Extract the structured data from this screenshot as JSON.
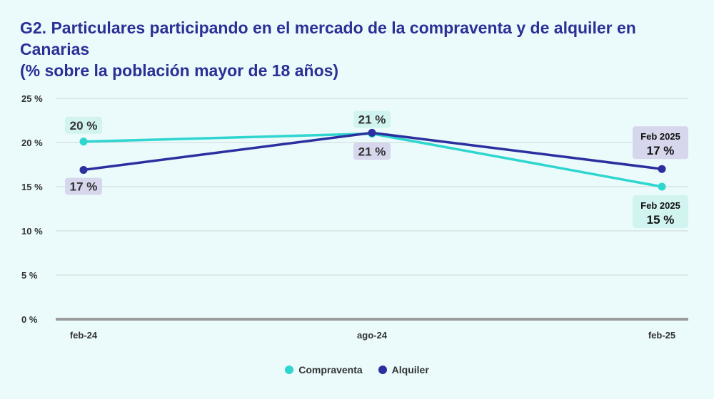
{
  "title_line1": "G2. Particulares participando en el mercado de la compraventa y de alquiler en Canarias",
  "title_line2": "(% sobre la población mayor de 18 años)",
  "chart_data": {
    "type": "line",
    "categories": [
      "feb-24",
      "ago-24",
      "feb-25"
    ],
    "y_ticks": [
      "0 %",
      "5 %",
      "10 %",
      "15 %",
      "20 %",
      "25 %"
    ],
    "ylim": [
      0,
      25
    ],
    "grid": true,
    "legend_position": "bottom",
    "series": [
      {
        "name": "Compraventa",
        "color": "#2fd5cf",
        "label_bg": "#d2f4f1",
        "values": [
          20.1,
          21.0,
          15.0
        ],
        "labels": [
          "20 %",
          "21 %",
          "15 %"
        ],
        "end_label_top": "Feb 2025"
      },
      {
        "name": "Alquiler",
        "color": "#2b2f9f",
        "label_bg": "#d6d6ec",
        "values": [
          16.9,
          21.1,
          17.0
        ],
        "labels": [
          "17 %",
          "21 %",
          "17 %"
        ],
        "end_label_top": "Feb 2025"
      }
    ]
  }
}
